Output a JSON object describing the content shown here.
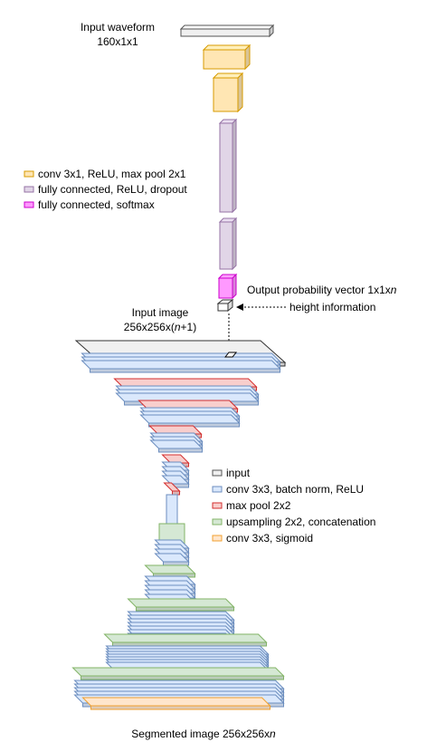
{
  "colors": {
    "input": "#f0f0f0",
    "conv1d": "#ffe6b3",
    "conv1d_stroke": "#d79b00",
    "fc_relu": "#e1d5e7",
    "fc_relu_stroke": "#9673a6",
    "fc_softmax": "#ff99ff",
    "fc_softmax_stroke": "#cc00cc",
    "conv_bn": "#dae8fc",
    "conv_bn_stroke": "#6c8ebf",
    "maxpool": "#f8cecc",
    "maxpool_stroke": "#d32f2f",
    "upsample": "#d5e8d4",
    "upsample_stroke": "#82b366",
    "sigmoid": "#ffe6cc",
    "sigmoid_stroke": "#f0a030"
  },
  "top_network": {
    "input_label": "Input waveform",
    "input_dims": "160x1x1",
    "legend": [
      {
        "label": "conv 3x1, ReLU, max pool 2x1",
        "color_key": "conv1d"
      },
      {
        "label": "fully connected, ReLU, dropout",
        "color_key": "fc_relu"
      },
      {
        "label": "fully connected, softmax",
        "color_key": "fc_softmax"
      }
    ],
    "output_label_prefix": "Output probability vector 1x1x",
    "output_label_var": "n",
    "height_info_label": "height information"
  },
  "bottom_network": {
    "input_image_label": "Input image",
    "input_image_dims_prefix": "256x256x(",
    "input_image_dims_var": "n",
    "input_image_dims_suffix": "+1)",
    "legend": [
      {
        "label": "input",
        "color_key": "input"
      },
      {
        "label": "conv 3x3, batch norm, ReLU",
        "color_key": "conv_bn"
      },
      {
        "label": "max pool 2x2",
        "color_key": "maxpool"
      },
      {
        "label": "upsampling 2x2, concatenation",
        "color_key": "upsample"
      },
      {
        "label": "conv 3x3, sigmoid",
        "color_key": "sigmoid"
      }
    ],
    "output_label_prefix": "Segmented image  256x256x",
    "output_label_var": "n"
  }
}
